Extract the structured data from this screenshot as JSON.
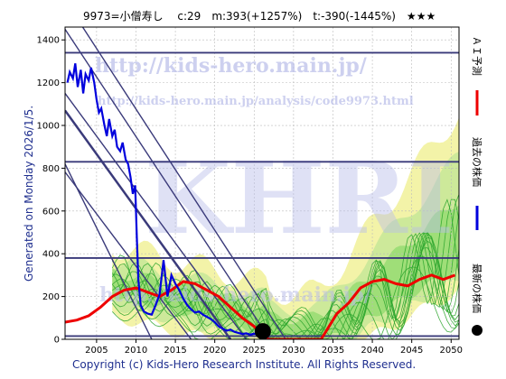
{
  "chart_data": {
    "type": "line",
    "title": "9973=小僧寿し　 c:29　m:393(+1257%)　t:-390(-1445%)　★★★",
    "xlabel": "",
    "ylabel": "",
    "xlim": [
      2001,
      2051
    ],
    "ylim": [
      0,
      1460
    ],
    "x_ticks": [
      2005,
      2010,
      2015,
      2020,
      2025,
      2030,
      2035,
      2040,
      2045,
      2050
    ],
    "y_ticks": [
      0,
      200,
      400,
      600,
      800,
      1000,
      1200,
      1400
    ],
    "horizontal_levels": [
      1340,
      830,
      380,
      15
    ],
    "current_point": {
      "x": 2026.1,
      "y": 29
    },
    "series": [
      {
        "name": "過去の株価",
        "color": "#0000dd",
        "points": [
          [
            2001.3,
            1200
          ],
          [
            2001.6,
            1250
          ],
          [
            2002.0,
            1220
          ],
          [
            2002.3,
            1290
          ],
          [
            2002.6,
            1180
          ],
          [
            2003.0,
            1260
          ],
          [
            2003.3,
            1150
          ],
          [
            2003.6,
            1240
          ],
          [
            2004.0,
            1210
          ],
          [
            2004.3,
            1270
          ],
          [
            2004.7,
            1200
          ],
          [
            2005.0,
            1120
          ],
          [
            2005.3,
            1060
          ],
          [
            2005.6,
            1080
          ],
          [
            2006.0,
            1000
          ],
          [
            2006.3,
            950
          ],
          [
            2006.6,
            1030
          ],
          [
            2007.0,
            950
          ],
          [
            2007.3,
            980
          ],
          [
            2007.6,
            900
          ],
          [
            2008.0,
            880
          ],
          [
            2008.3,
            920
          ],
          [
            2008.7,
            840
          ],
          [
            2009.0,
            820
          ],
          [
            2009.3,
            760
          ],
          [
            2009.6,
            680
          ],
          [
            2009.9,
            720
          ],
          [
            2010.1,
            480
          ],
          [
            2010.3,
            280
          ],
          [
            2010.6,
            160
          ],
          [
            2011.0,
            130
          ],
          [
            2011.5,
            120
          ],
          [
            2012.0,
            115
          ],
          [
            2012.5,
            160
          ],
          [
            2013.0,
            210
          ],
          [
            2013.5,
            370
          ],
          [
            2014.0,
            200
          ],
          [
            2014.5,
            300
          ],
          [
            2015.0,
            260
          ],
          [
            2015.5,
            230
          ],
          [
            2016.0,
            190
          ],
          [
            2016.5,
            160
          ],
          [
            2017.0,
            140
          ],
          [
            2017.5,
            125
          ],
          [
            2018.0,
            130
          ],
          [
            2018.5,
            115
          ],
          [
            2019.0,
            105
          ],
          [
            2019.5,
            95
          ],
          [
            2020.0,
            80
          ],
          [
            2020.5,
            60
          ],
          [
            2021.0,
            50
          ],
          [
            2021.5,
            40
          ],
          [
            2022.0,
            45
          ],
          [
            2022.5,
            35
          ],
          [
            2023.0,
            30
          ],
          [
            2023.5,
            25
          ],
          [
            2024.0,
            28
          ],
          [
            2024.5,
            22
          ],
          [
            2025.0,
            26
          ],
          [
            2025.5,
            24
          ],
          [
            2026.1,
            29
          ]
        ]
      },
      {
        "name": "ＡＩ予測",
        "color": "#ee0000",
        "points": [
          [
            2001.0,
            80
          ],
          [
            2002.5,
            90
          ],
          [
            2004.0,
            110
          ],
          [
            2005.5,
            150
          ],
          [
            2007.0,
            200
          ],
          [
            2008.5,
            230
          ],
          [
            2010.0,
            240
          ],
          [
            2011.5,
            220
          ],
          [
            2013.0,
            200
          ],
          [
            2014.5,
            230
          ],
          [
            2016.0,
            270
          ],
          [
            2017.5,
            260
          ],
          [
            2019.0,
            230
          ],
          [
            2020.5,
            200
          ],
          [
            2022.0,
            150
          ],
          [
            2023.5,
            100
          ],
          [
            2025.0,
            60
          ],
          [
            2026.0,
            20
          ],
          [
            2026.8,
            0
          ],
          [
            2033.5,
            0
          ],
          [
            2034.5,
            60
          ],
          [
            2035.5,
            120
          ],
          [
            2037.0,
            170
          ],
          [
            2038.5,
            240
          ],
          [
            2040.0,
            270
          ],
          [
            2041.5,
            280
          ],
          [
            2043.0,
            260
          ],
          [
            2044.5,
            250
          ],
          [
            2046.0,
            280
          ],
          [
            2047.5,
            300
          ],
          [
            2049.0,
            280
          ],
          [
            2050.5,
            300
          ]
        ]
      },
      {
        "name": "最新の株価",
        "color": "#000000",
        "points": [
          [
            2026.1,
            29
          ]
        ]
      }
    ]
  },
  "watermark": {
    "url": "http://kids-hero.main.jp/",
    "analysis_url": "http://kids-hero.main.jp/analysis/code9973.html",
    "big": "KHRI",
    "url2": "http://kids-hero.main.jp/"
  },
  "side": {
    "generated": "Generated on Monday 2026/1/5.",
    "legend_ai": "ＡＩ予測",
    "legend_past": "過去の株価",
    "legend_latest": "最新の株価"
  },
  "footer": "Copyright (c) Kids-Hero Research Institute. All Rights Reserved.",
  "colors": {
    "band_yellow": "#f3f3a8",
    "band_light_green": "#cde99a",
    "band_green": "#8cd86a",
    "fan_line": "#2fa62f",
    "level_line": "#3a3a7a",
    "diag_line": "#3a3a7a"
  }
}
